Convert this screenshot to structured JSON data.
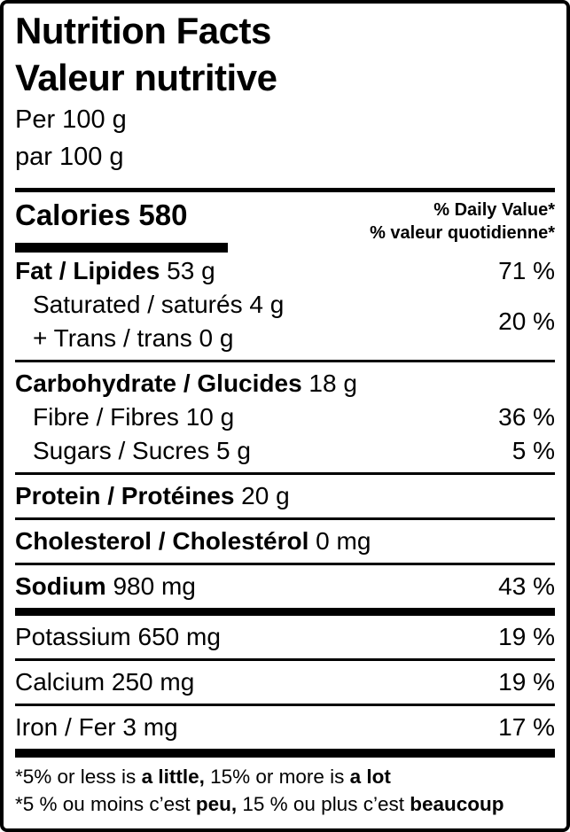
{
  "colors": {
    "ink": "#000000",
    "paper": "#ffffff"
  },
  "header": {
    "title_en": "Nutrition Facts",
    "title_fr": "Valeur nutritive",
    "serving_en": "Per 100 g",
    "serving_fr": "par 100 g"
  },
  "calories": {
    "label": "Calories",
    "value": "580"
  },
  "dv_header": {
    "en": "% Daily Value*",
    "fr": "% valeur quotidienne*"
  },
  "rows": {
    "fat": {
      "bold": "Fat / Lipides",
      "rest": " 53 g",
      "dv": "71 %"
    },
    "saturated": {
      "line1": "Saturated / saturés 4 g",
      "line2": "+ Trans / trans 0 g",
      "dv": "20 %"
    },
    "carbohydrate": {
      "bold": "Carbohydrate / Glucides",
      "rest": " 18 g"
    },
    "fibre": {
      "text": "Fibre / Fibres 10 g",
      "dv": "36 %"
    },
    "sugars": {
      "text": "Sugars / Sucres 5 g",
      "dv": "5 %"
    },
    "protein": {
      "bold": "Protein / Protéines",
      "rest": " 20 g"
    },
    "cholesterol": {
      "bold": "Cholesterol / Cholestérol",
      "rest": " 0 mg"
    },
    "sodium": {
      "bold": "Sodium",
      "rest": " 980 mg",
      "dv": "43 %"
    },
    "potassium": {
      "text": "Potassium 650 mg",
      "dv": "19 %"
    },
    "calcium": {
      "text": "Calcium 250 mg",
      "dv": "19 %"
    },
    "iron": {
      "text": "Iron / Fer 3 mg",
      "dv": "17 %"
    }
  },
  "footnote_en": {
    "p1": "*5% or less is ",
    "b1": "a little,",
    "p2": " 15% or more is ",
    "b2": "a lot"
  },
  "footnote_fr": {
    "p1": "*5 % ou moins c’est ",
    "b1": "peu,",
    "p2": " 15 % ou plus c’est ",
    "b2": "beaucoup"
  }
}
